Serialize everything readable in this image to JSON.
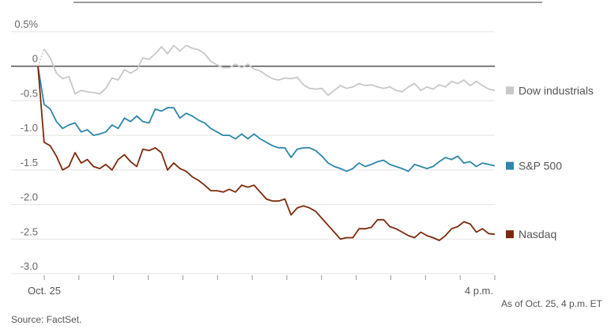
{
  "chart_data": {
    "type": "line",
    "title": "",
    "ylabel": "",
    "ylim": [
      -3.0,
      0.5
    ],
    "y_ticks": [
      {
        "value": 0.5,
        "label": "0.5%"
      },
      {
        "value": 0,
        "label": "0"
      },
      {
        "value": -0.5,
        "label": "-0.5"
      },
      {
        "value": -1.0,
        "label": "-1.0"
      },
      {
        "value": -1.5,
        "label": "-1.5"
      },
      {
        "value": -2.0,
        "label": "-2.0"
      },
      {
        "value": -2.5,
        "label": "-2.5"
      },
      {
        "value": -3.0,
        "label": "-3.0"
      }
    ],
    "x_tick_labels": [
      {
        "index": 1,
        "label": "Oct. 25"
      },
      {
        "index": 78,
        "label": "4 p.m."
      }
    ],
    "x_tick_count": 14,
    "grid": true,
    "legend_placement": "right, beside line ends",
    "series": [
      {
        "name": "Dow industrials",
        "color": "#c8c8c8",
        "values": [
          0,
          0.25,
          0.12,
          -0.1,
          -0.18,
          -0.15,
          -0.4,
          -0.35,
          -0.37,
          -0.38,
          -0.4,
          -0.32,
          -0.17,
          -0.2,
          -0.05,
          -0.1,
          -0.05,
          0.12,
          0.1,
          0.18,
          0.28,
          0.18,
          0.3,
          0.22,
          0.3,
          0.26,
          0.24,
          0.18,
          0.07,
          0.02,
          -0.02,
          -0.02,
          0.03,
          -0.02,
          0.03,
          -0.04,
          -0.07,
          -0.13,
          -0.18,
          -0.2,
          -0.17,
          -0.18,
          -0.16,
          -0.27,
          -0.32,
          -0.33,
          -0.32,
          -0.42,
          -0.35,
          -0.28,
          -0.32,
          -0.3,
          -0.25,
          -0.28,
          -0.27,
          -0.3,
          -0.32,
          -0.3,
          -0.35,
          -0.37,
          -0.3,
          -0.25,
          -0.35,
          -0.3,
          -0.33,
          -0.27,
          -0.3,
          -0.22,
          -0.25,
          -0.2,
          -0.28,
          -0.22,
          -0.28,
          -0.33,
          -0.35
        ],
        "dotted_first_segment": true
      },
      {
        "name": "S&P 500",
        "color": "#2e86ab",
        "values": [
          0,
          -0.55,
          -0.62,
          -0.8,
          -0.9,
          -0.85,
          -0.82,
          -0.95,
          -0.92,
          -1.0,
          -0.98,
          -0.95,
          -0.85,
          -0.9,
          -0.75,
          -0.8,
          -0.72,
          -0.8,
          -0.82,
          -0.62,
          -0.65,
          -0.6,
          -0.6,
          -0.75,
          -0.68,
          -0.72,
          -0.78,
          -0.82,
          -0.9,
          -0.95,
          -1.0,
          -1.0,
          -1.05,
          -0.98,
          -1.05,
          -0.98,
          -1.05,
          -1.1,
          -1.15,
          -1.18,
          -1.18,
          -1.32,
          -1.2,
          -1.18,
          -1.18,
          -1.22,
          -1.3,
          -1.4,
          -1.45,
          -1.48,
          -1.52,
          -1.48,
          -1.4,
          -1.45,
          -1.42,
          -1.38,
          -1.36,
          -1.42,
          -1.45,
          -1.48,
          -1.52,
          -1.42,
          -1.45,
          -1.48,
          -1.45,
          -1.38,
          -1.32,
          -1.35,
          -1.3,
          -1.4,
          -1.38,
          -1.45,
          -1.4,
          -1.42,
          -1.44
        ],
        "dotted_first_segment": false
      },
      {
        "name": "Nasdaq",
        "color": "#7b2a0d",
        "values": [
          0,
          -1.1,
          -1.15,
          -1.3,
          -1.5,
          -1.45,
          -1.25,
          -1.4,
          -1.35,
          -1.45,
          -1.48,
          -1.42,
          -1.5,
          -1.35,
          -1.28,
          -1.38,
          -1.45,
          -1.2,
          -1.22,
          -1.18,
          -1.25,
          -1.5,
          -1.4,
          -1.48,
          -1.52,
          -1.6,
          -1.65,
          -1.72,
          -1.8,
          -1.8,
          -1.82,
          -1.78,
          -1.82,
          -1.72,
          -1.75,
          -1.72,
          -1.82,
          -1.92,
          -1.95,
          -1.95,
          -1.92,
          -2.15,
          -2.05,
          -2.02,
          -2.05,
          -2.1,
          -2.2,
          -2.3,
          -2.4,
          -2.5,
          -2.48,
          -2.48,
          -2.35,
          -2.35,
          -2.33,
          -2.22,
          -2.22,
          -2.32,
          -2.35,
          -2.4,
          -2.45,
          -2.48,
          -2.4,
          -2.45,
          -2.48,
          -2.52,
          -2.45,
          -2.35,
          -2.32,
          -2.25,
          -2.28,
          -2.4,
          -2.35,
          -2.42,
          -2.43
        ],
        "dotted_first_segment": false
      }
    ]
  },
  "footer": {
    "as_of": "As of Oct. 25, 4 p.m. ET",
    "source": "Source: FactSet."
  }
}
